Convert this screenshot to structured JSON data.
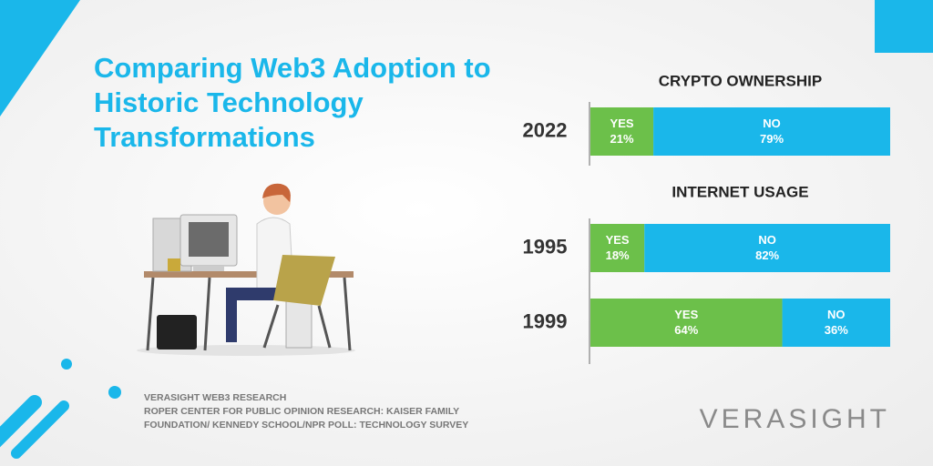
{
  "title": "Comparing Web3 Adoption to Historic Technology Transformations",
  "chart_data": [
    {
      "type": "stacked-bar-h",
      "title": "CRYPTO OWNERSHIP",
      "categories": [
        "2022"
      ],
      "xlim": [
        0,
        100
      ],
      "series": [
        {
          "name": "YES",
          "color": "#6cc04a",
          "values": [
            21
          ],
          "value_labels": [
            "21%"
          ]
        },
        {
          "name": "NO",
          "color": "#1ab7ea",
          "values": [
            79
          ],
          "value_labels": [
            "79%"
          ]
        }
      ]
    },
    {
      "type": "stacked-bar-h",
      "title": "INTERNET USAGE",
      "categories": [
        "1995",
        "1999"
      ],
      "xlim": [
        0,
        100
      ],
      "series": [
        {
          "name": "YES",
          "color": "#6cc04a",
          "values": [
            18,
            64
          ],
          "value_labels": [
            "18%",
            "64%"
          ]
        },
        {
          "name": "NO",
          "color": "#1ab7ea",
          "values": [
            82,
            36
          ],
          "value_labels": [
            "82%",
            "36%"
          ]
        }
      ]
    }
  ],
  "sources": [
    "VERASIGHT WEB3 RESEARCH",
    "ROPER CENTER FOR PUBLIC OPINION RESEARCH: KAISER FAMILY",
    "FOUNDATION/ KENNEDY SCHOOL/NPR POLL: TECHNOLOGY SURVEY"
  ],
  "brand": "VERASIGHT"
}
